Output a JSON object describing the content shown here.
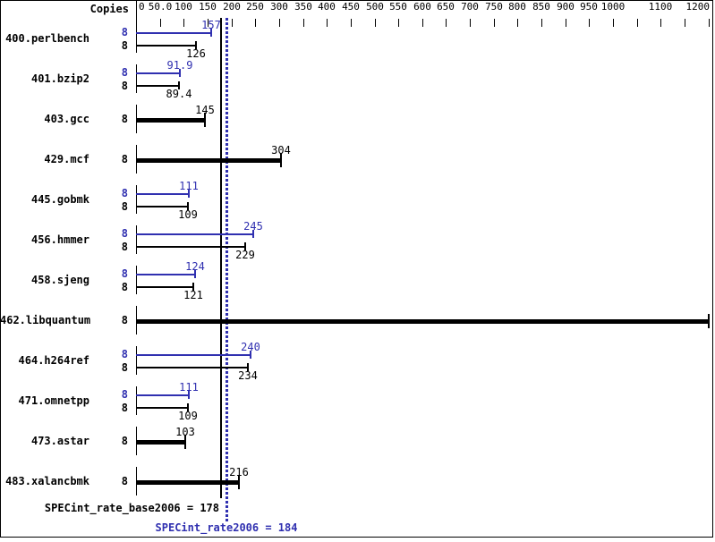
{
  "chart_data": {
    "type": "bar",
    "orientation": "horizontal",
    "copies_header": "Copies",
    "x_axis": {
      "min": 0,
      "max": 1200,
      "tick_step": 50,
      "labeled_ticks": [
        {
          "v": 0,
          "label": "0"
        },
        {
          "v": 50,
          "label": "50.0"
        },
        {
          "v": 100,
          "label": "100"
        },
        {
          "v": 150,
          "label": "150"
        },
        {
          "v": 200,
          "label": "200"
        },
        {
          "v": 250,
          "label": "250"
        },
        {
          "v": 300,
          "label": "300"
        },
        {
          "v": 350,
          "label": "350"
        },
        {
          "v": 400,
          "label": "400"
        },
        {
          "v": 450,
          "label": "450"
        },
        {
          "v": 500,
          "label": "500"
        },
        {
          "v": 550,
          "label": "550"
        },
        {
          "v": 600,
          "label": "600"
        },
        {
          "v": 650,
          "label": "650"
        },
        {
          "v": 700,
          "label": "700"
        },
        {
          "v": 750,
          "label": "750"
        },
        {
          "v": 800,
          "label": "800"
        },
        {
          "v": 850,
          "label": "850"
        },
        {
          "v": 900,
          "label": "900"
        },
        {
          "v": 950,
          "label": "950"
        },
        {
          "v": 1000,
          "label": "1000"
        },
        {
          "v": 1100,
          "label": "1100"
        },
        {
          "v": 1200,
          "label": "1200"
        }
      ]
    },
    "benchmarks": [
      {
        "name": "400.perlbench",
        "copies": "8",
        "peak": 157,
        "peak_label": "157",
        "base": 126,
        "base_label": "126",
        "single": false
      },
      {
        "name": "401.bzip2",
        "copies": "8",
        "peak": 91.9,
        "peak_label": "91.9",
        "base": 89.4,
        "base_label": "89.4",
        "single": false
      },
      {
        "name": "403.gcc",
        "copies": "8",
        "base": 145,
        "base_label": "145",
        "single": true
      },
      {
        "name": "429.mcf",
        "copies": "8",
        "base": 304,
        "base_label": "304",
        "single": true
      },
      {
        "name": "445.gobmk",
        "copies": "8",
        "peak": 111,
        "peak_label": "111",
        "base": 109,
        "base_label": "109",
        "single": false
      },
      {
        "name": "456.hmmer",
        "copies": "8",
        "peak": 245,
        "peak_label": "245",
        "base": 229,
        "base_label": "229",
        "single": false
      },
      {
        "name": "458.sjeng",
        "copies": "8",
        "peak": 124,
        "peak_label": "124",
        "base": 121,
        "base_label": "121",
        "single": false
      },
      {
        "name": "462.libquantum",
        "copies": "8",
        "base": 1200,
        "base_label": "1200",
        "single": true
      },
      {
        "name": "464.h264ref",
        "copies": "8",
        "peak": 240,
        "peak_label": "240",
        "base": 234,
        "base_label": "234",
        "single": false
      },
      {
        "name": "471.omnetpp",
        "copies": "8",
        "peak": 111,
        "peak_label": "111",
        "base": 109,
        "base_label": "109",
        "single": false
      },
      {
        "name": "473.astar",
        "copies": "8",
        "base": 103,
        "base_label": "103",
        "single": true
      },
      {
        "name": "483.xalancbmk",
        "copies": "8",
        "base": 216,
        "base_label": "216",
        "single": true
      }
    ],
    "summary": {
      "base_label": "SPECint_rate_base2006 = 178",
      "base_value": 178,
      "peak_label": "SPECint_rate2006 = 184",
      "peak_value": 184
    },
    "colors": {
      "base": "#000000",
      "peak": "#3030b0",
      "background": "#ffffff"
    }
  }
}
